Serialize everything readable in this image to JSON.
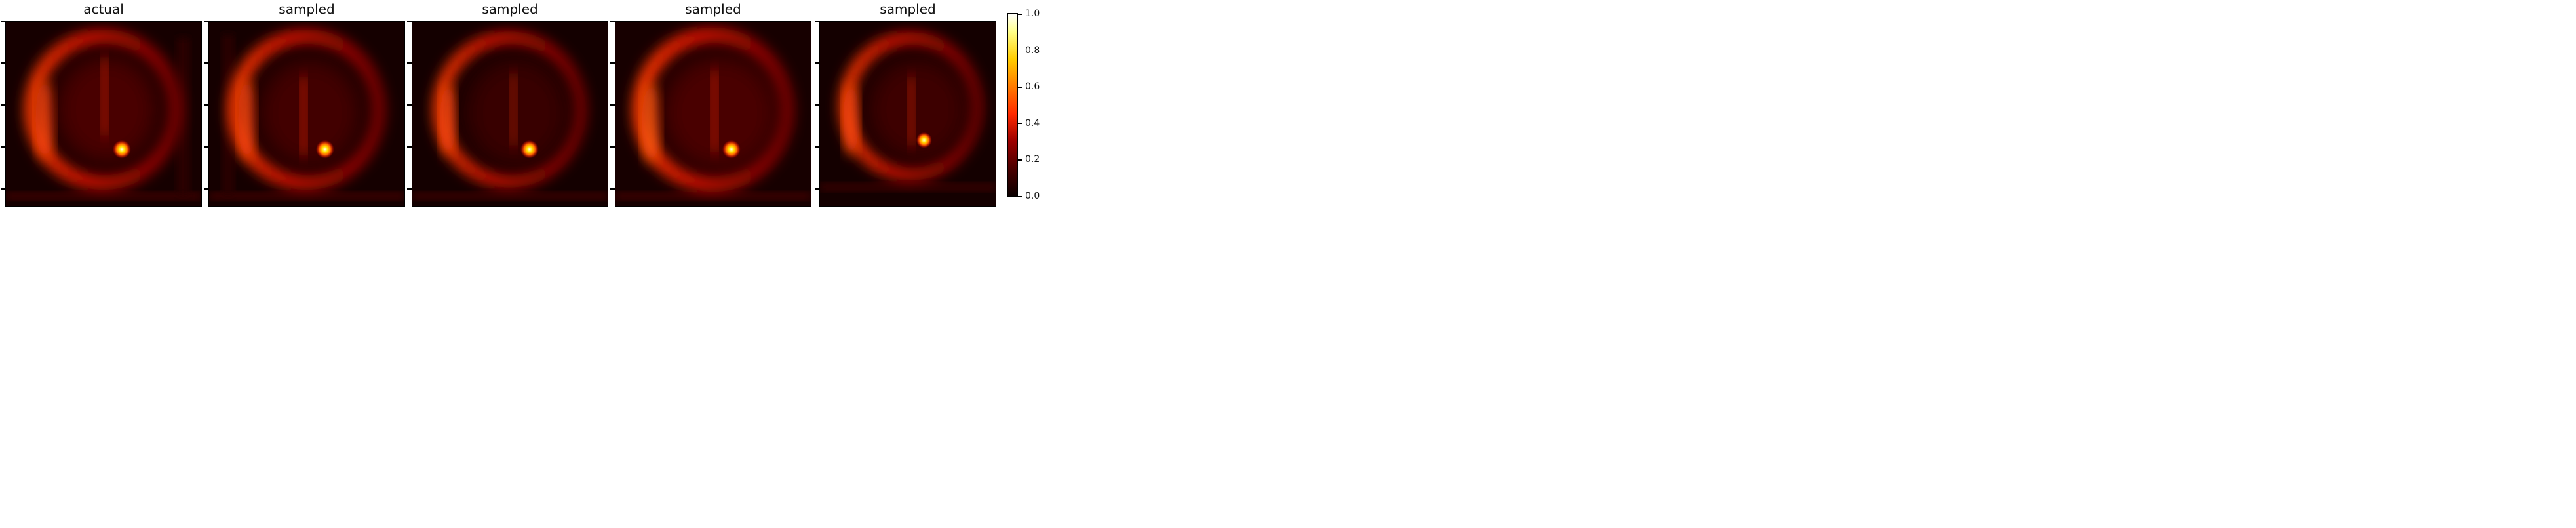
{
  "panels": [
    {
      "title": "actual"
    },
    {
      "title": "sampled"
    },
    {
      "title": "sampled"
    },
    {
      "title": "sampled"
    },
    {
      "title": "sampled"
    }
  ],
  "colorbar": {
    "colormap": "hot",
    "ticks": [
      "0.0",
      "0.2",
      "0.4",
      "0.6",
      "0.8",
      "1.0"
    ],
    "colors": {
      "low": "#0b0000",
      "mid": "#ff2a00",
      "high": "#ffffff"
    }
  }
}
